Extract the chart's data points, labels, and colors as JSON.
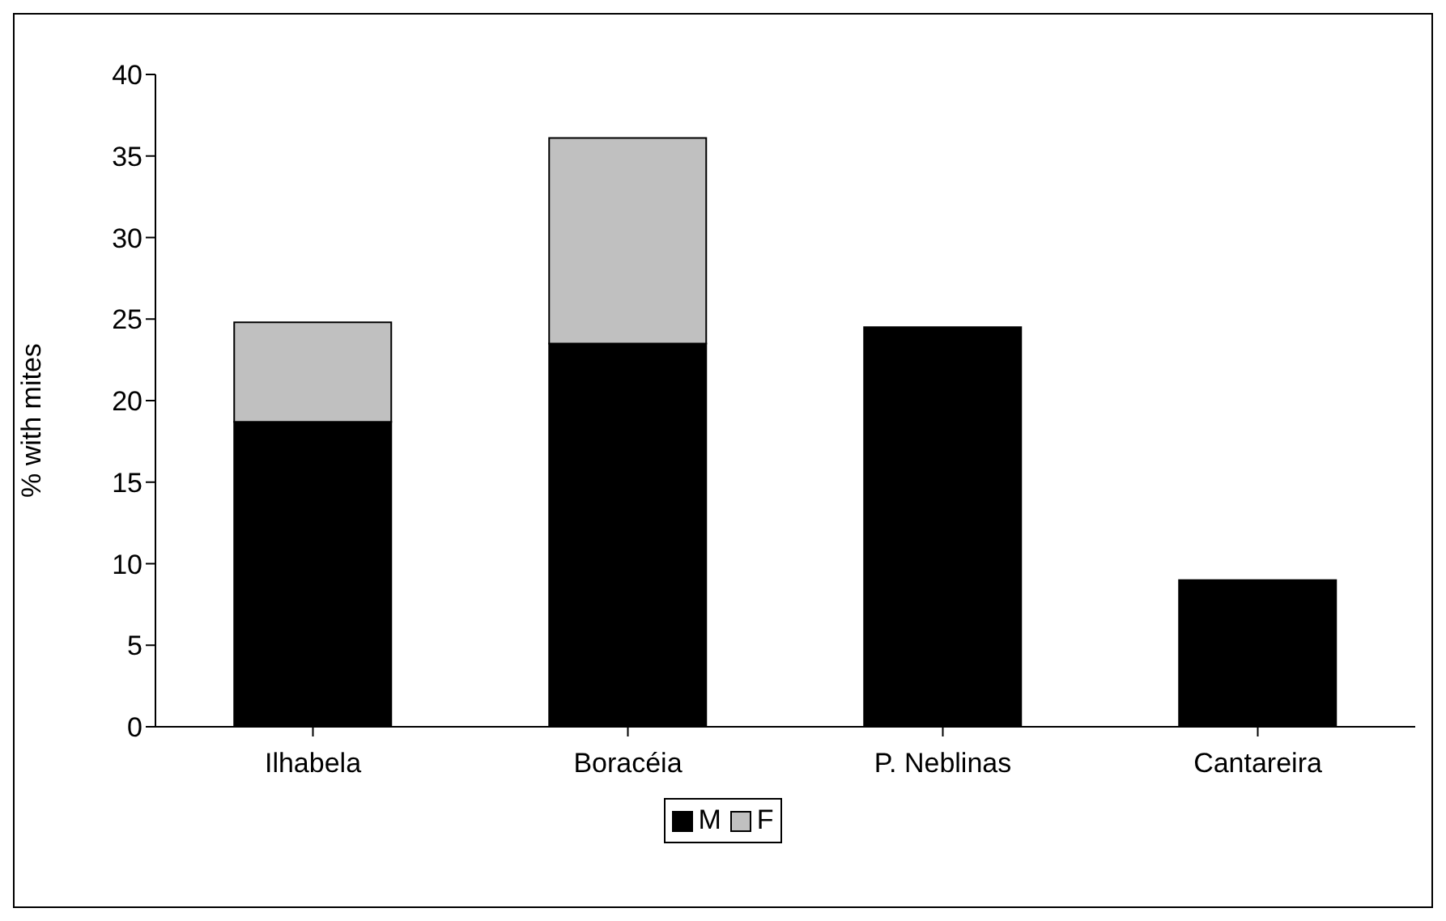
{
  "chart_data": {
    "type": "bar",
    "ylabel": "% with mites",
    "categories": [
      "Ilhabela",
      "Boracéia",
      "P. Neblinas",
      "Cantareira"
    ],
    "series": [
      {
        "name": "M",
        "color": "#000000",
        "values": [
          18.7,
          23.5,
          24.5,
          9.0
        ]
      },
      {
        "name": "F",
        "color": "#c0c0c0",
        "values": [
          6.1,
          12.6,
          null,
          null
        ]
      }
    ],
    "stacked": true,
    "ylim": [
      0,
      40
    ],
    "yticks": [
      0,
      5,
      10,
      15,
      20,
      25,
      30,
      35,
      40
    ],
    "grid": false,
    "legend": "bottom"
  }
}
